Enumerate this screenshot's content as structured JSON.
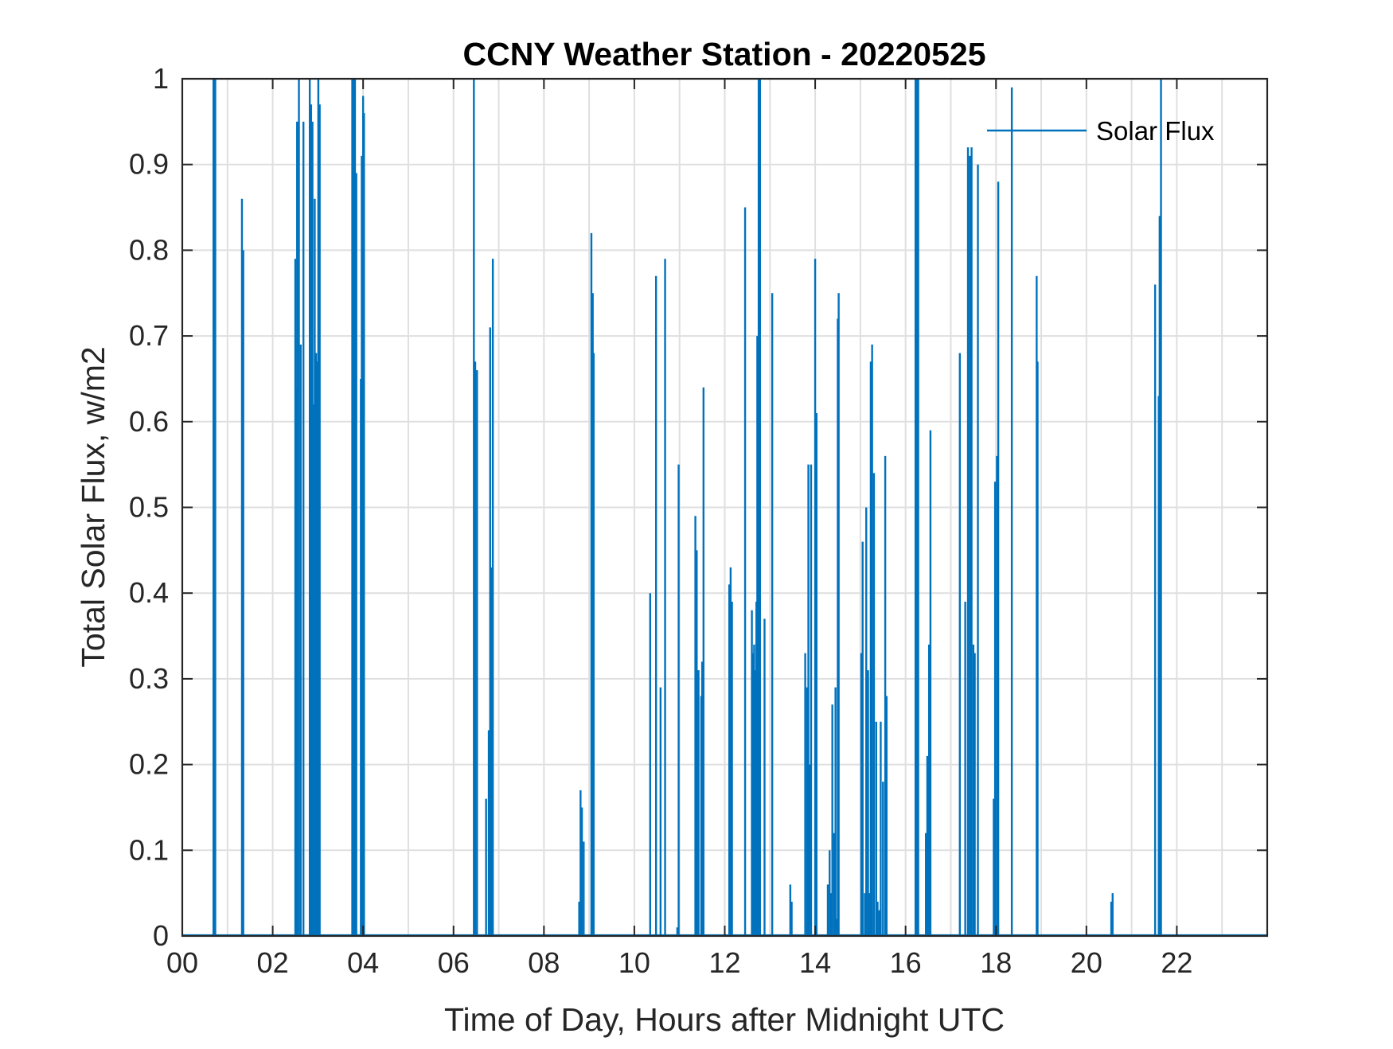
{
  "chart_data": {
    "type": "line",
    "title": "CCNY Weather Station - 20220525",
    "xlabel": "Time of Day, Hours after Midnight UTC",
    "ylabel": "Total Solar Flux, w/m2",
    "xlim": [
      0,
      24
    ],
    "ylim": [
      0,
      1
    ],
    "xticks": [
      0,
      2,
      4,
      6,
      8,
      10,
      12,
      14,
      16,
      18,
      20,
      22
    ],
    "xtick_labels": [
      "00",
      "02",
      "04",
      "06",
      "08",
      "10",
      "12",
      "14",
      "16",
      "18",
      "20",
      "22"
    ],
    "yticks": [
      0,
      0.1,
      0.2,
      0.3,
      0.4,
      0.5,
      0.6,
      0.7,
      0.8,
      0.9,
      1
    ],
    "ytick_labels": [
      "0",
      "0.1",
      "0.2",
      "0.3",
      "0.4",
      "0.5",
      "0.6",
      "0.7",
      "0.8",
      "0.9",
      "1"
    ],
    "grid": true,
    "minor_xgrid_step": 1,
    "legend_position": "top-right",
    "series_color": "#0072BD",
    "series": [
      {
        "name": "Solar Flux",
        "spikes": [
          [
            0.69,
            1.0
          ],
          [
            0.71,
            1.0
          ],
          [
            0.73,
            1.0
          ],
          [
            1.32,
            0.86
          ],
          [
            1.35,
            0.8
          ],
          [
            2.5,
            0.79
          ],
          [
            2.52,
            0.64
          ],
          [
            2.54,
            0.95
          ],
          [
            2.58,
            1.0
          ],
          [
            2.62,
            0.69
          ],
          [
            2.68,
            0.95
          ],
          [
            2.82,
            1.0
          ],
          [
            2.85,
            0.97
          ],
          [
            2.88,
            0.95
          ],
          [
            2.9,
            0.62
          ],
          [
            2.93,
            0.86
          ],
          [
            2.96,
            0.68
          ],
          [
            2.99,
            0.67
          ],
          [
            3.01,
            1.0
          ],
          [
            3.04,
            0.97
          ],
          [
            3.76,
            1.0
          ],
          [
            3.79,
            1.0
          ],
          [
            3.82,
            1.0
          ],
          [
            3.85,
            0.89
          ],
          [
            3.95,
            0.65
          ],
          [
            3.97,
            0.91
          ],
          [
            4.0,
            0.98
          ],
          [
            4.02,
            0.96
          ],
          [
            6.45,
            1.0
          ],
          [
            6.48,
            0.67
          ],
          [
            6.52,
            0.66
          ],
          [
            6.72,
            0.16
          ],
          [
            6.78,
            0.24
          ],
          [
            6.81,
            0.71
          ],
          [
            6.84,
            0.43
          ],
          [
            6.87,
            0.79
          ],
          [
            8.78,
            0.04
          ],
          [
            8.81,
            0.17
          ],
          [
            8.84,
            0.15
          ],
          [
            8.88,
            0.11
          ],
          [
            9.05,
            0.82
          ],
          [
            9.08,
            0.75
          ],
          [
            9.1,
            0.68
          ],
          [
            10.35,
            0.4
          ],
          [
            10.48,
            0.77
          ],
          [
            10.58,
            0.29
          ],
          [
            10.68,
            0.79
          ],
          [
            10.95,
            0.01
          ],
          [
            10.98,
            0.55
          ],
          [
            11.35,
            0.49
          ],
          [
            11.38,
            0.45
          ],
          [
            11.42,
            0.31
          ],
          [
            11.48,
            0.28
          ],
          [
            11.5,
            0.32
          ],
          [
            11.53,
            0.64
          ],
          [
            12.1,
            0.41
          ],
          [
            12.13,
            0.43
          ],
          [
            12.16,
            0.39
          ],
          [
            12.45,
            0.85
          ],
          [
            12.6,
            0.38
          ],
          [
            12.62,
            0.33
          ],
          [
            12.65,
            0.34
          ],
          [
            12.68,
            0.31
          ],
          [
            12.7,
            0.39
          ],
          [
            12.72,
            0.7
          ],
          [
            12.75,
            1.0
          ],
          [
            12.78,
            1.0
          ],
          [
            12.88,
            0.37
          ],
          [
            13.05,
            0.75
          ],
          [
            13.45,
            0.06
          ],
          [
            13.48,
            0.04
          ],
          [
            13.78,
            0.33
          ],
          [
            13.82,
            0.29
          ],
          [
            13.85,
            0.55
          ],
          [
            13.88,
            0.2
          ],
          [
            13.91,
            0.55
          ],
          [
            14.0,
            0.79
          ],
          [
            14.03,
            0.61
          ],
          [
            14.28,
            0.06
          ],
          [
            14.32,
            0.1
          ],
          [
            14.35,
            0.05
          ],
          [
            14.38,
            0.27
          ],
          [
            14.42,
            0.12
          ],
          [
            14.45,
            0.29
          ],
          [
            14.48,
            0.02
          ],
          [
            14.5,
            0.72
          ],
          [
            14.52,
            0.75
          ],
          [
            15.02,
            0.33
          ],
          [
            15.05,
            0.46
          ],
          [
            15.1,
            0.05
          ],
          [
            15.13,
            0.5
          ],
          [
            15.17,
            0.31
          ],
          [
            15.2,
            0.05
          ],
          [
            15.23,
            0.67
          ],
          [
            15.26,
            0.69
          ],
          [
            15.3,
            0.54
          ],
          [
            15.35,
            0.25
          ],
          [
            15.38,
            0.04
          ],
          [
            15.42,
            0.03
          ],
          [
            15.45,
            0.25
          ],
          [
            15.5,
            0.18
          ],
          [
            15.55,
            0.56
          ],
          [
            15.58,
            0.28
          ],
          [
            16.22,
            1.0
          ],
          [
            16.25,
            1.0
          ],
          [
            16.28,
            1.0
          ],
          [
            16.45,
            0.12
          ],
          [
            16.48,
            0.21
          ],
          [
            16.52,
            0.34
          ],
          [
            16.55,
            0.59
          ],
          [
            17.2,
            0.68
          ],
          [
            17.32,
            0.39
          ],
          [
            17.38,
            0.92
          ],
          [
            17.42,
            0.91
          ],
          [
            17.46,
            0.92
          ],
          [
            17.5,
            0.34
          ],
          [
            17.53,
            0.33
          ],
          [
            17.6,
            0.9
          ],
          [
            17.95,
            0.16
          ],
          [
            17.98,
            0.53
          ],
          [
            18.02,
            0.56
          ],
          [
            18.05,
            0.88
          ],
          [
            18.35,
            0.99
          ],
          [
            18.9,
            0.77
          ],
          [
            18.92,
            0.67
          ],
          [
            20.55,
            0.04
          ],
          [
            20.58,
            0.05
          ],
          [
            21.52,
            0.76
          ],
          [
            21.6,
            0.63
          ],
          [
            21.62,
            0.84
          ],
          [
            21.65,
            1.0
          ]
        ]
      }
    ]
  }
}
